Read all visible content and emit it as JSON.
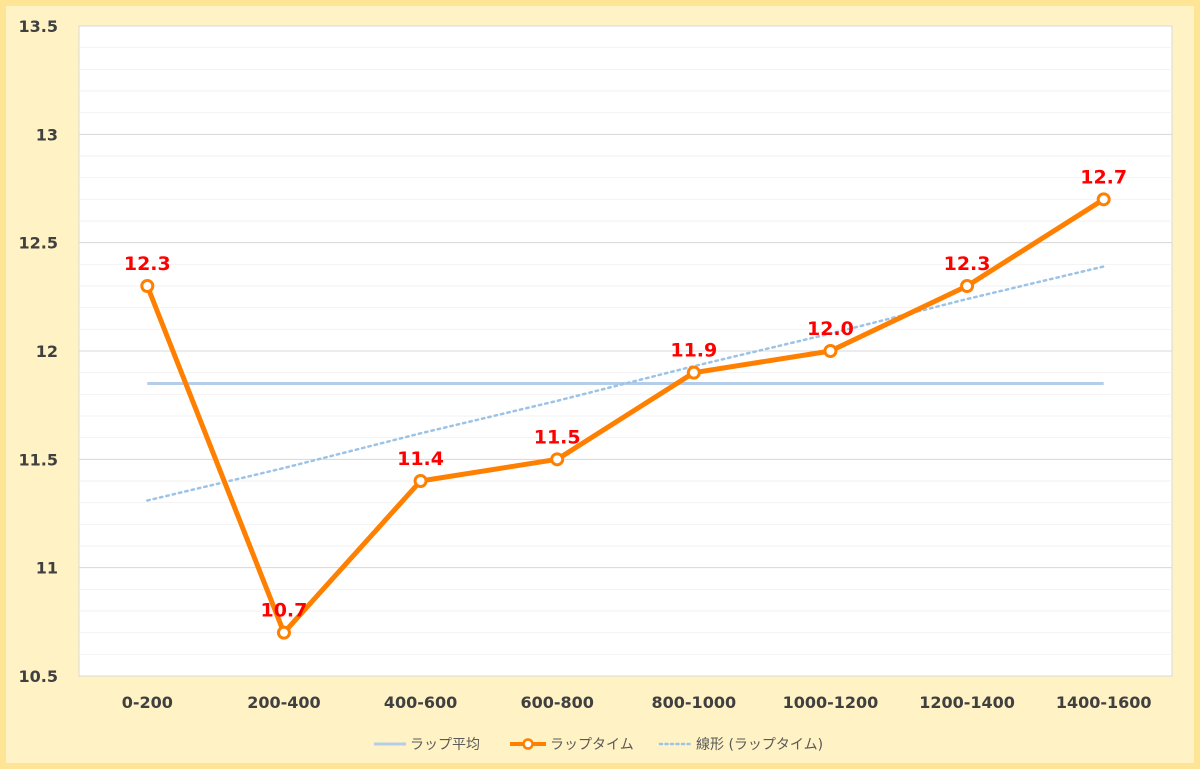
{
  "chart_data": {
    "type": "line",
    "categories": [
      "0-200",
      "200-400",
      "400-600",
      "600-800",
      "800-1000",
      "1000-1200",
      "1200-1400",
      "1400-1600"
    ],
    "series": [
      {
        "name": "ラップタイム",
        "values": [
          12.3,
          10.7,
          11.4,
          11.5,
          11.9,
          12.0,
          12.3,
          12.7
        ],
        "labels": [
          "12.3",
          "10.7",
          "11.4",
          "11.5",
          "11.9",
          "12.0",
          "12.3",
          "12.7"
        ],
        "color": "#ff8000"
      },
      {
        "name": "ラップ平均",
        "values": [
          11.85,
          11.85,
          11.85,
          11.85,
          11.85,
          11.85,
          11.85,
          11.85
        ],
        "color": "#b4cde8"
      },
      {
        "name": "線形 (ラップタイム)",
        "values": [
          11.31,
          11.46,
          11.62,
          11.77,
          11.93,
          12.08,
          12.24,
          12.39
        ],
        "color": "#9dc3e6",
        "style": "dotted"
      }
    ],
    "ylim": [
      10.5,
      13.5
    ],
    "yticks": [
      10.5,
      11,
      11.5,
      12,
      12.5,
      13,
      13.5
    ],
    "ytick_labels": [
      "10.5",
      "11",
      "11.5",
      "12",
      "12.5",
      "13",
      "13.5"
    ],
    "grid": true,
    "legend_position": "bottom",
    "legend": [
      "ラップ平均",
      "ラップタイム",
      "線形 (ラップタイム)"
    ]
  }
}
